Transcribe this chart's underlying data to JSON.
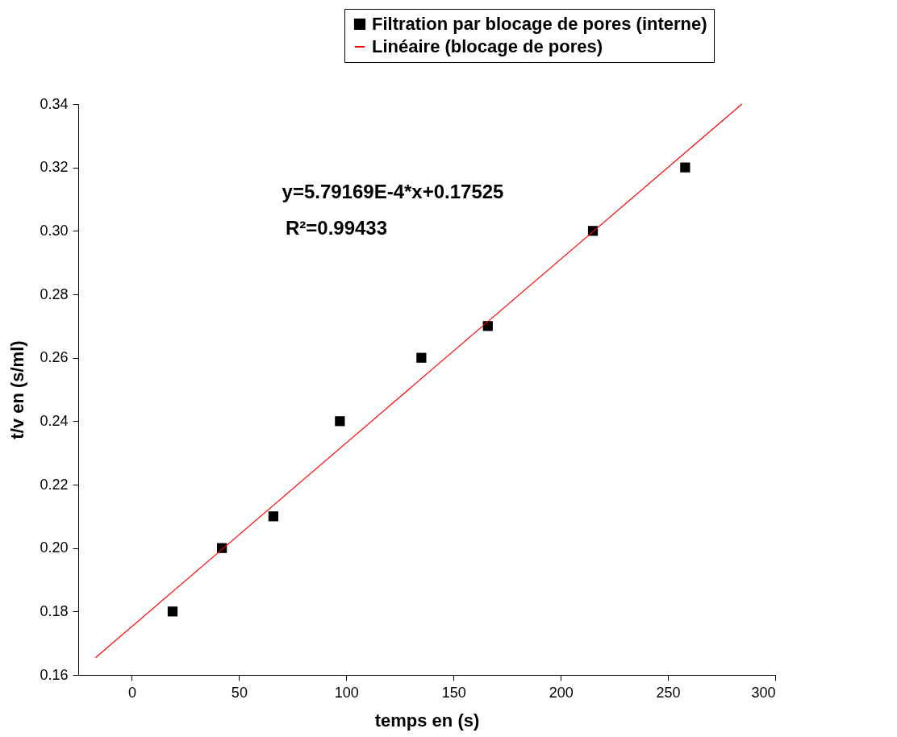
{
  "chart_data": {
    "type": "scatter",
    "xlabel": "temps en (s)",
    "ylabel": "t/v en (s/ml)",
    "xlim": [
      -25,
      300
    ],
    "ylim": [
      0.16,
      0.34
    ],
    "xticks": [
      0,
      50,
      100,
      150,
      200,
      250,
      300
    ],
    "yticks": [
      0.16,
      0.18,
      {
        "value": 0.2,
        "label": "0.20"
      },
      0.22,
      0.24,
      0.26,
      0.28,
      {
        "value": 0.3,
        "label": "0.30"
      },
      0.32,
      0.34
    ],
    "grid": false,
    "legend": "top right",
    "annotations": [
      "y=5.79169E-4*x+0.17525",
      "R²=0.99433"
    ],
    "series": [
      {
        "name": "Filtration par blocage de pores (interne)",
        "type": "scatter",
        "marker": "square",
        "color": "#000000",
        "x": [
          19,
          42,
          66,
          97,
          135,
          166,
          215,
          258
        ],
        "values": [
          0.18,
          0.2,
          0.21,
          0.24,
          0.26,
          0.27,
          0.3,
          0.32
        ]
      },
      {
        "name": "Linéaire (blocage de pores)",
        "type": "line",
        "color": "#ff0000",
        "line_style": "solid",
        "x": [
          -17,
          284.5
        ],
        "values": [
          0.1654,
          0.34
        ]
      }
    ]
  }
}
